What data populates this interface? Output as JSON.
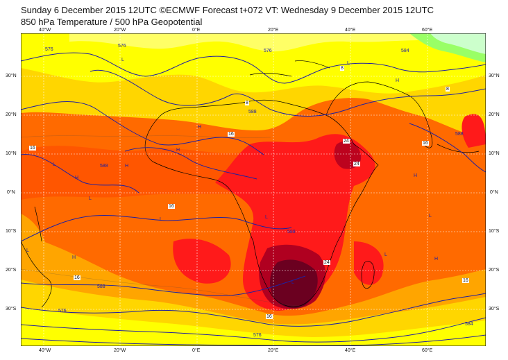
{
  "header": {
    "title_line1": "Sunday 6 December 2015 12UTC ©ECMWF Forecast t+072 VT: Wednesday 9 December 2015 12UTC",
    "title_line2": "850 hPa Temperature / 500 hPa Geopotential"
  },
  "map": {
    "lon_labels": [
      "40°W",
      "20°W",
      "0°E",
      "20°E",
      "40°E",
      "60°E"
    ],
    "lat_labels": [
      "30°N",
      "20°N",
      "10°N",
      "0°N",
      "10°S",
      "20°S",
      "30°S"
    ],
    "temperature_labels": [
      "8",
      "8",
      "8",
      "16",
      "16",
      "16",
      "16",
      "16",
      "16",
      "24",
      "24",
      "24",
      "16"
    ],
    "geopotential_labels": [
      "576",
      "576",
      "576",
      "584",
      "588",
      "588",
      "588",
      "588",
      "588",
      "576",
      "576",
      "584"
    ],
    "pressure_letters": [
      "L",
      "L",
      "H",
      "H",
      "L",
      "L",
      "H",
      "L",
      "L",
      "H",
      "L",
      "H",
      "H",
      "L",
      "H",
      "L",
      "L",
      "H"
    ],
    "colors": {
      "lt_8": "#ffff00",
      "c8_12": "#ffd600",
      "c12_16": "#ffa500",
      "c16_20": "#ff6a00",
      "c20_24": "#ff1a1a",
      "c24_28": "#b00020",
      "c28_plus": "#6b0020",
      "cold_0_4": "#ccffcc",
      "cold_4_8": "#99ff66",
      "contour": "#2020a0",
      "coast": "#000000",
      "grid": "#ffffff"
    }
  }
}
